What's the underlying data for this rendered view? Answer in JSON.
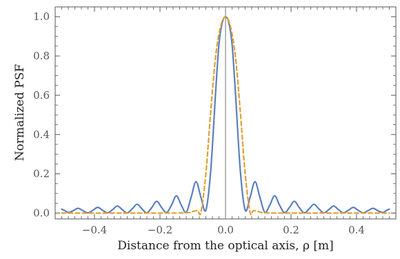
{
  "chart_data": {
    "type": "line",
    "title": "",
    "xlabel": "Distance from the optical axis,  ρ [m]",
    "ylabel": "Normalized PSF",
    "xlim": [
      -0.52,
      0.52
    ],
    "ylim": [
      -0.03,
      1.05
    ],
    "x_ticks": [
      -0.4,
      -0.2,
      0.0,
      0.2,
      0.4
    ],
    "x_tick_labels": [
      "−0.4",
      "−0.2",
      "0.0",
      "0.2",
      "0.4"
    ],
    "y_ticks": [
      0.0,
      0.2,
      0.4,
      0.6,
      0.8,
      1.0
    ],
    "y_tick_labels": [
      "0.0",
      "0.2",
      "0.4",
      "0.6",
      "0.8",
      "1.0"
    ],
    "grid": false,
    "legend": "none",
    "vertical_reference_line_x": 0.0,
    "series": [
      {
        "color": "#5b7fbf",
        "dash": "solid",
        "x": [
          -0.5,
          -0.49,
          -0.48,
          -0.465,
          -0.45,
          -0.435,
          -0.42,
          -0.405,
          -0.39,
          -0.375,
          -0.36,
          -0.345,
          -0.33,
          -0.315,
          -0.3,
          -0.285,
          -0.27,
          -0.255,
          -0.24,
          -0.225,
          -0.21,
          -0.195,
          -0.18,
          -0.165,
          -0.15,
          -0.135,
          -0.12,
          -0.105,
          -0.09,
          -0.075,
          -0.06,
          -0.045,
          -0.03,
          -0.02,
          -0.01,
          0.0,
          0.01,
          0.02,
          0.03,
          0.045,
          0.06,
          0.075,
          0.09,
          0.105,
          0.12,
          0.135,
          0.15,
          0.165,
          0.18,
          0.195,
          0.21,
          0.225,
          0.24,
          0.255,
          0.27,
          0.285,
          0.3,
          0.315,
          0.33,
          0.345,
          0.36,
          0.375,
          0.39,
          0.405,
          0.42,
          0.435,
          0.45,
          0.465,
          0.48,
          0.49,
          0.5
        ],
        "y": [
          0.02,
          0.012,
          0.003,
          0.012,
          0.024,
          0.012,
          0.001,
          0.014,
          0.029,
          0.014,
          0.001,
          0.017,
          0.036,
          0.017,
          0.001,
          0.021,
          0.045,
          0.021,
          0.001,
          0.028,
          0.06,
          0.028,
          0.002,
          0.04,
          0.088,
          0.04,
          0.003,
          0.08,
          0.16,
          0.08,
          0.015,
          0.22,
          0.62,
          0.86,
          0.97,
          1.0,
          0.97,
          0.86,
          0.62,
          0.22,
          0.015,
          0.08,
          0.16,
          0.08,
          0.003,
          0.04,
          0.088,
          0.04,
          0.002,
          0.028,
          0.06,
          0.028,
          0.001,
          0.021,
          0.045,
          0.021,
          0.001,
          0.017,
          0.036,
          0.017,
          0.001,
          0.014,
          0.029,
          0.014,
          0.001,
          0.012,
          0.024,
          0.012,
          0.003,
          0.012,
          0.02
        ]
      },
      {
        "color": "#e0a030",
        "dash": "dashed",
        "x": [
          -0.5,
          -0.2,
          -0.12,
          -0.1,
          -0.085,
          -0.075,
          -0.06,
          -0.045,
          -0.03,
          -0.015,
          0.0,
          0.015,
          0.03,
          0.045,
          0.06,
          0.075,
          0.085,
          0.1,
          0.12,
          0.2,
          0.5
        ],
        "y": [
          0.0,
          0.0,
          0.001,
          0.008,
          0.012,
          0.004,
          0.2,
          0.52,
          0.8,
          0.95,
          1.0,
          0.95,
          0.8,
          0.52,
          0.2,
          0.004,
          0.012,
          0.008,
          0.001,
          0.0,
          0.0
        ]
      }
    ]
  }
}
